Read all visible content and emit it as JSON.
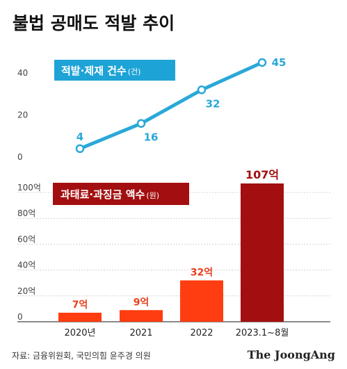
{
  "title": "불법 공매도 적발 추이",
  "source": "자료: 금융위원회, 국민의힘 윤주경 의원",
  "logo": "The JoongAng",
  "colors": {
    "line": "#2aa8d8",
    "line_legend": "#1ea3d6",
    "bar_normal": "#ff3d10",
    "bar_highlight": "#a30f10",
    "bar_legend": "#a30f10",
    "bar_label_normal": "#e8401c",
    "bar_label_highlight": "#a30f10"
  },
  "chart_data": [
    {
      "type": "line",
      "legend": {
        "text": "적발·제재 건수",
        "unit": "(건)"
      },
      "x": [
        "2020년",
        "2021",
        "2022",
        "2023.1~8월"
      ],
      "values": [
        4,
        16,
        32,
        45
      ],
      "data_labels": [
        "4",
        "16",
        "32",
        "45"
      ],
      "ylim": [
        0,
        45
      ],
      "yticks": [
        "0",
        "20",
        "40"
      ],
      "grid": false
    },
    {
      "type": "bar",
      "legend": {
        "text": "과태료·과징금 액수",
        "unit": "(원)"
      },
      "categories": [
        "2020년",
        "2021",
        "2022",
        "2023.1~8월"
      ],
      "values": [
        7,
        9,
        32,
        107
      ],
      "data_labels": [
        "7억",
        "9억",
        "32억",
        "107억"
      ],
      "highlight_index": 3,
      "ylim": [
        0,
        107
      ],
      "yticks": [
        "0",
        "20억",
        "40억",
        "60억",
        "80억",
        "100억"
      ],
      "grid": true
    }
  ]
}
